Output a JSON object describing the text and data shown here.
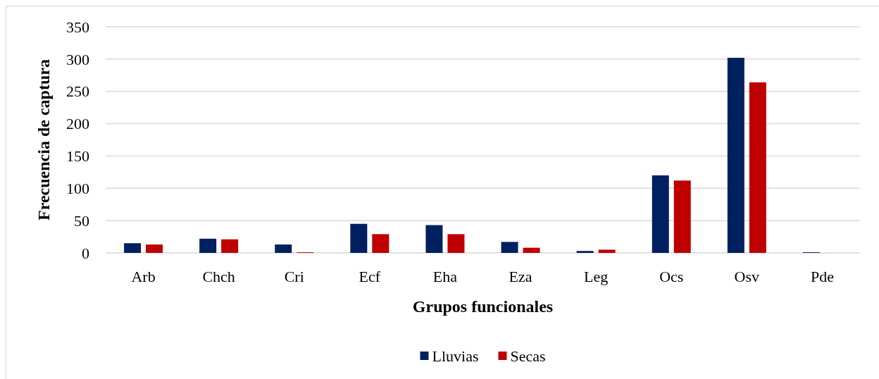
{
  "chart_data": {
    "type": "bar",
    "xlabel": "Grupos funcionales",
    "ylabel": "Frecuencia de captura",
    "categories": [
      "Arb",
      "Chch",
      "Cri",
      "Ecf",
      "Eha",
      "Eza",
      "Leg",
      "Ocs",
      "Osv",
      "Pde"
    ],
    "series": [
      {
        "name": "Lluvias",
        "color": "#002060",
        "values": [
          15,
          22,
          13,
          45,
          43,
          17,
          3,
          120,
          302,
          1
        ]
      },
      {
        "name": "Secas",
        "color": "#c00000",
        "values": [
          13,
          21,
          1,
          29,
          29,
          8,
          5,
          112,
          264,
          0
        ]
      }
    ],
    "ylim": [
      0,
      350
    ],
    "yticks": [
      0,
      50,
      100,
      150,
      200,
      250,
      300,
      350
    ],
    "grid": "y",
    "legend": "bottom"
  }
}
